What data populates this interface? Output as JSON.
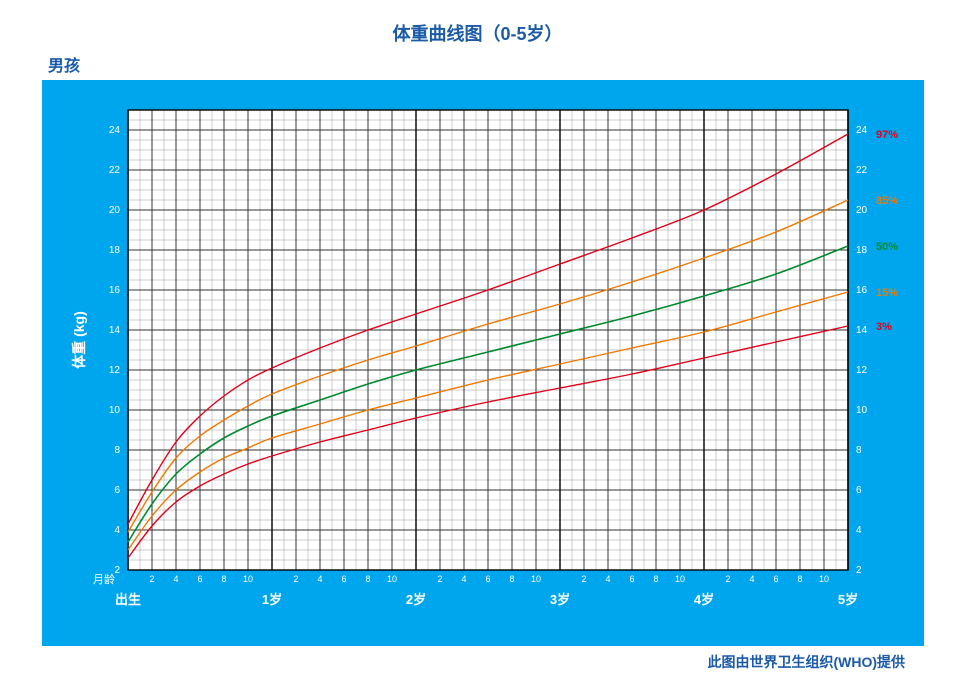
{
  "title": "体重曲线图（0-5岁）",
  "subtitle": "男孩",
  "credit": "此图由世界卫生组织(WHO)提供",
  "chart": {
    "type": "line-growth-chart",
    "background_color": "#00a6ed",
    "plot_background": "#ffffff",
    "title_color": "#1a5aa8",
    "title_fontsize": 18,
    "ylabel": "体重 (kg)",
    "ylabel_color": "#ffffff",
    "ylabel_fontsize": 14,
    "xlabel_month": "月龄",
    "xlabel_month_color": "#ffffff",
    "x_domain_months": [
      0,
      60
    ],
    "y_domain_kg": [
      2,
      25
    ],
    "y_ticks": [
      2,
      4,
      6,
      8,
      10,
      12,
      14,
      16,
      18,
      20,
      22,
      24
    ],
    "y_tick_color": "#ffffff",
    "y_tick_fontsize": 10,
    "month_sub_ticks": [
      2,
      4,
      6,
      8,
      10
    ],
    "month_sub_tick_color": "#ffffff",
    "month_sub_tick_fontsize": 9,
    "year_markers": [
      {
        "month": 0,
        "label": "出生"
      },
      {
        "month": 12,
        "label": "1岁"
      },
      {
        "month": 24,
        "label": "2岁"
      },
      {
        "month": 36,
        "label": "3岁"
      },
      {
        "month": 48,
        "label": "4岁"
      },
      {
        "month": 60,
        "label": "5岁"
      }
    ],
    "year_marker_color": "#ffffff",
    "year_marker_fontsize": 13,
    "grid_minor_color": "#9a9a9a",
    "grid_minor_width": 0.5,
    "grid_major_color": "#333333",
    "grid_major_width": 1.0,
    "grid_year_color": "#000000",
    "grid_year_width": 1.4,
    "x_minor_step_months": 1,
    "x_major_step_months": 2,
    "y_minor_step_kg": 0.5,
    "y_major_step_kg": 2,
    "curves": [
      {
        "label": "97%",
        "color": "#e2001a",
        "label_color": "#e2001a",
        "width": 1.4,
        "points": [
          [
            0,
            4.3
          ],
          [
            2,
            6.5
          ],
          [
            4,
            8.4
          ],
          [
            6,
            9.7
          ],
          [
            8,
            10.7
          ],
          [
            10,
            11.5
          ],
          [
            12,
            12.1
          ],
          [
            16,
            13.1
          ],
          [
            20,
            14.0
          ],
          [
            24,
            14.8
          ],
          [
            30,
            16.0
          ],
          [
            36,
            17.3
          ],
          [
            42,
            18.6
          ],
          [
            48,
            20.0
          ],
          [
            54,
            21.8
          ],
          [
            60,
            23.8
          ]
        ]
      },
      {
        "label": "85%",
        "color": "#f07800",
        "label_color": "#f07800",
        "width": 1.4,
        "points": [
          [
            0,
            3.9
          ],
          [
            2,
            5.9
          ],
          [
            4,
            7.6
          ],
          [
            6,
            8.7
          ],
          [
            8,
            9.5
          ],
          [
            10,
            10.2
          ],
          [
            12,
            10.8
          ],
          [
            16,
            11.7
          ],
          [
            20,
            12.5
          ],
          [
            24,
            13.2
          ],
          [
            30,
            14.3
          ],
          [
            36,
            15.3
          ],
          [
            42,
            16.4
          ],
          [
            48,
            17.6
          ],
          [
            54,
            18.9
          ],
          [
            60,
            20.5
          ]
        ]
      },
      {
        "label": "50%",
        "color": "#008a2e",
        "label_color": "#008a2e",
        "width": 1.6,
        "points": [
          [
            0,
            3.4
          ],
          [
            2,
            5.3
          ],
          [
            4,
            6.8
          ],
          [
            6,
            7.8
          ],
          [
            8,
            8.6
          ],
          [
            10,
            9.2
          ],
          [
            12,
            9.7
          ],
          [
            16,
            10.5
          ],
          [
            20,
            11.3
          ],
          [
            24,
            12.0
          ],
          [
            30,
            12.9
          ],
          [
            36,
            13.8
          ],
          [
            42,
            14.7
          ],
          [
            48,
            15.7
          ],
          [
            54,
            16.8
          ],
          [
            60,
            18.2
          ]
        ]
      },
      {
        "label": "15%",
        "color": "#f07800",
        "label_color": "#f07800",
        "width": 1.4,
        "points": [
          [
            0,
            3.0
          ],
          [
            2,
            4.7
          ],
          [
            4,
            6.0
          ],
          [
            6,
            6.9
          ],
          [
            8,
            7.6
          ],
          [
            10,
            8.1
          ],
          [
            12,
            8.6
          ],
          [
            16,
            9.3
          ],
          [
            20,
            10.0
          ],
          [
            24,
            10.6
          ],
          [
            30,
            11.5
          ],
          [
            36,
            12.3
          ],
          [
            42,
            13.1
          ],
          [
            48,
            13.9
          ],
          [
            54,
            14.9
          ],
          [
            60,
            15.9
          ]
        ]
      },
      {
        "label": "3%",
        "color": "#e2001a",
        "label_color": "#e2001a",
        "width": 1.4,
        "points": [
          [
            0,
            2.6
          ],
          [
            2,
            4.2
          ],
          [
            4,
            5.4
          ],
          [
            6,
            6.2
          ],
          [
            8,
            6.8
          ],
          [
            10,
            7.3
          ],
          [
            12,
            7.7
          ],
          [
            16,
            8.4
          ],
          [
            20,
            9.0
          ],
          [
            24,
            9.6
          ],
          [
            30,
            10.4
          ],
          [
            36,
            11.1
          ],
          [
            42,
            11.8
          ],
          [
            48,
            12.6
          ],
          [
            54,
            13.4
          ],
          [
            60,
            14.2
          ]
        ]
      }
    ]
  }
}
